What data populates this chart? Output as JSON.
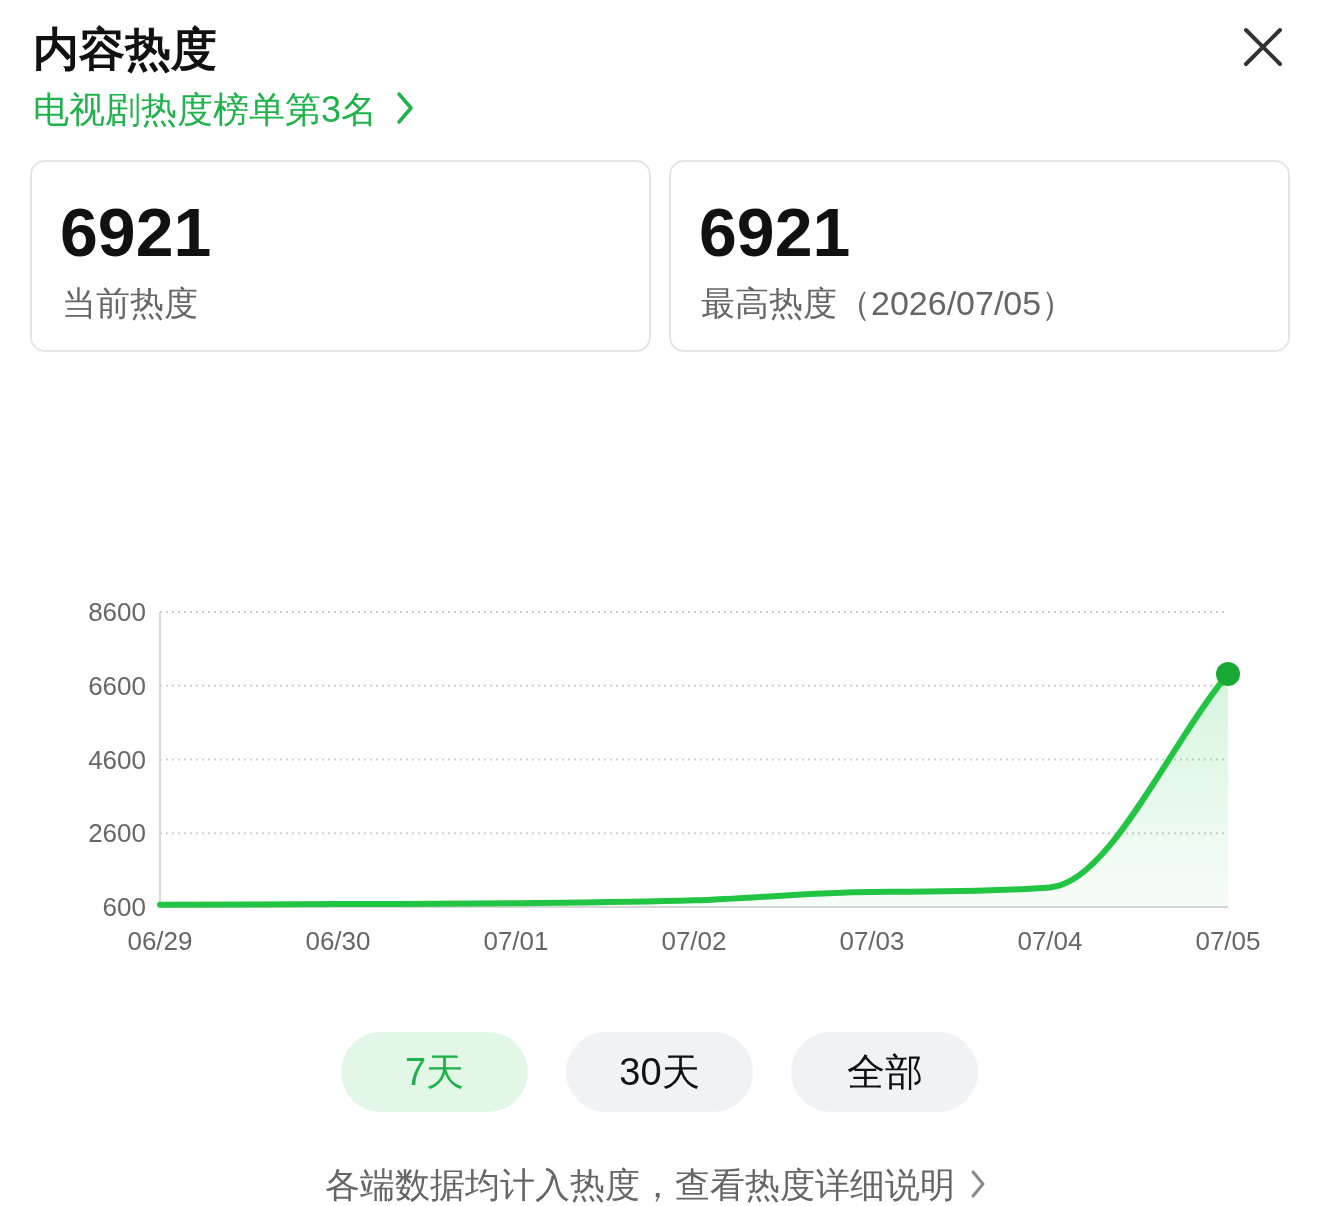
{
  "chart_data": {
    "type": "area",
    "title": "内容热度",
    "subtitle": "电视剧热度榜单第3名",
    "categories": [
      "06/29",
      "06/30",
      "07/01",
      "07/02",
      "07/03",
      "07/04",
      "07/05"
    ],
    "series": [
      {
        "color": "#22c443",
        "values": [
          660,
          680,
          700,
          780,
          1010,
          1130,
          6921
        ]
      },
      {
        "type": "scatter",
        "color": "#1aa935",
        "values": [
          null,
          null,
          null,
          null,
          null,
          null,
          6921
        ]
      }
    ],
    "ylim": [
      600,
      8600
    ],
    "yticks": [
      600,
      2600,
      4600,
      6600,
      8600
    ],
    "grid": "y",
    "annotations": [
      "6921",
      "当前热度",
      "6921",
      "最高热度（2026/07/05）",
      "7天",
      "30天",
      "全部",
      "各端数据均计入热度，查看热度详细说明"
    ]
  }
}
